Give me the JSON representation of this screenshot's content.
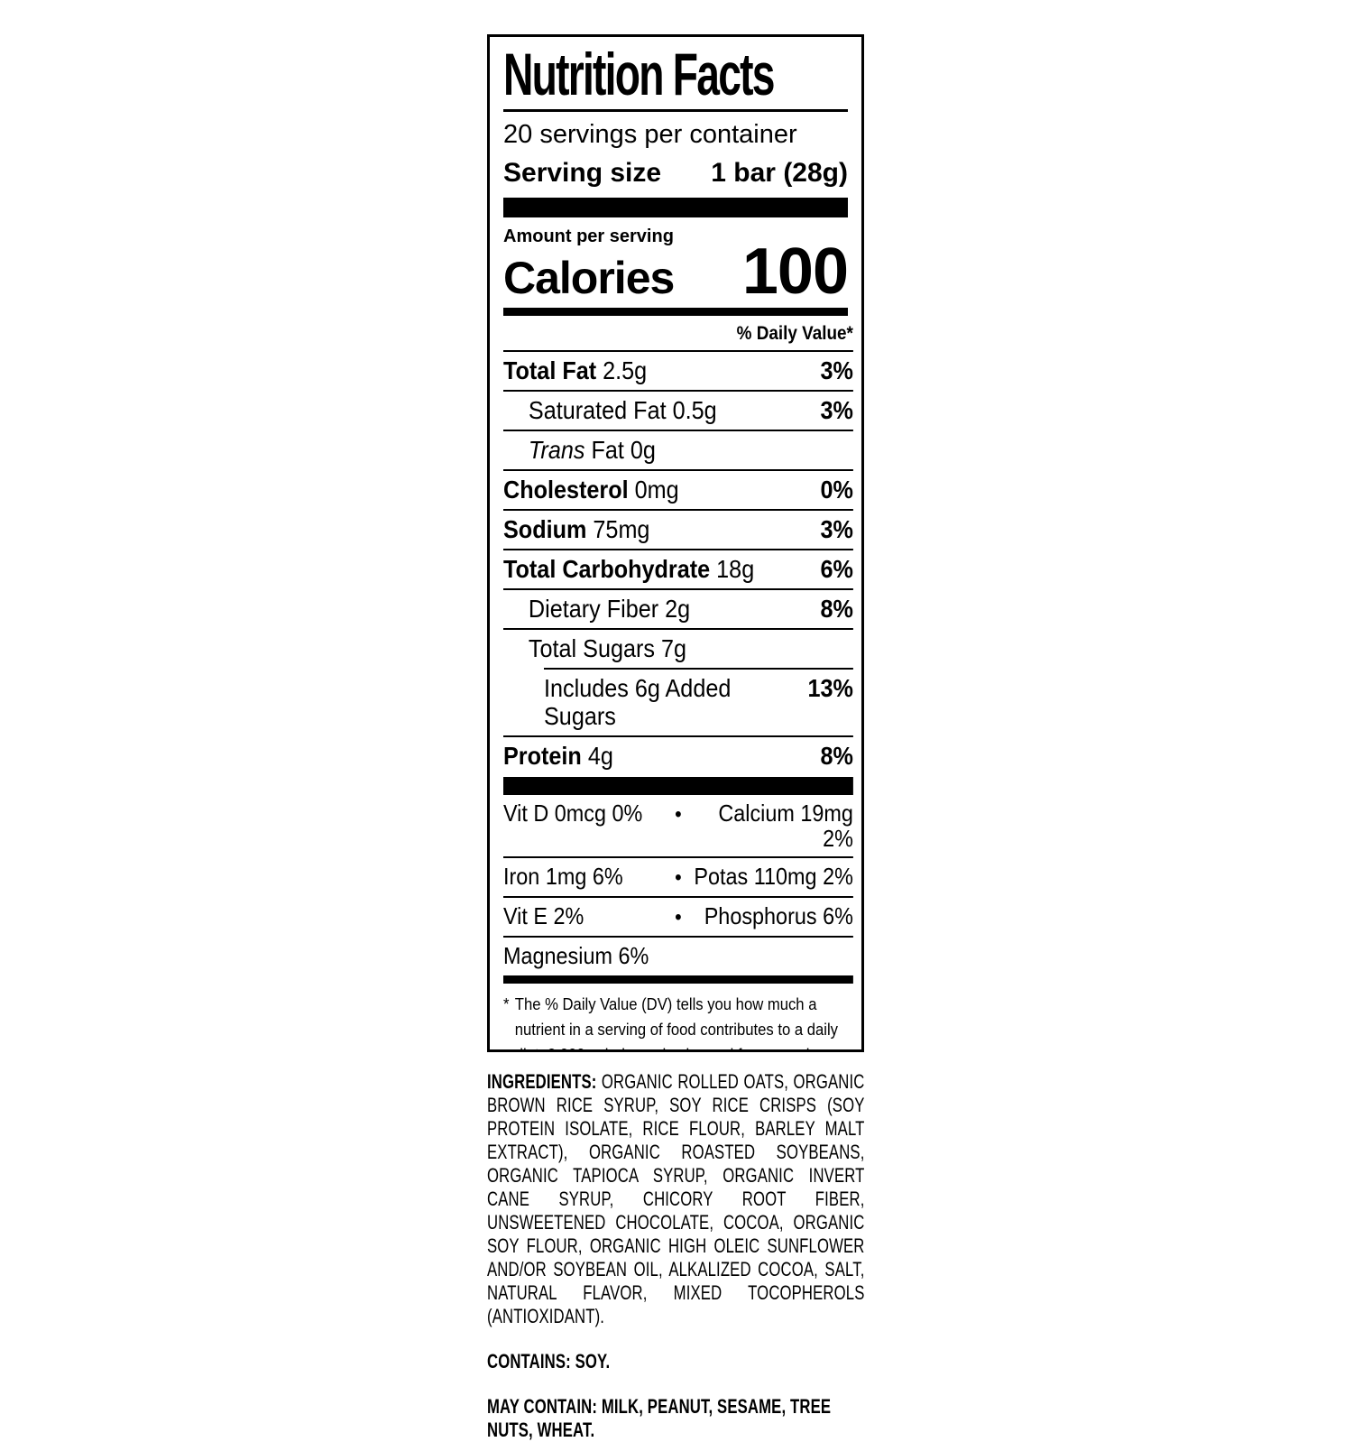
{
  "colors": {
    "ink": "#000000",
    "background": "#ffffff"
  },
  "icons": {
    "bullet": "•",
    "asterisk": "*"
  },
  "nf": {
    "title": "Nutrition Facts",
    "servings_per_container": "20 servings per container",
    "serving_size_label": "Serving size",
    "serving_size_value": "1 bar (28g)",
    "amount_per_serving": "Amount per serving",
    "calories_label": "Calories",
    "calories_value": "100",
    "daily_value_header": "% Daily Value*",
    "rows": [
      {
        "bold": "Total Fat",
        "rest": "2.5g",
        "dv": "3%"
      },
      {
        "rest": "Saturated Fat 0.5g",
        "dv": "3%"
      },
      {
        "italic": "Trans",
        "rest": "Fat 0g",
        "dv": ""
      },
      {
        "bold": "Cholesterol",
        "rest": "0mg",
        "dv": "0%"
      },
      {
        "bold": "Sodium",
        "rest": "75mg",
        "dv": "3%"
      },
      {
        "bold": "Total Carbohydrate",
        "rest": "18g",
        "dv": "6%"
      },
      {
        "rest": "Dietary Fiber 2g",
        "dv": "8%"
      },
      {
        "rest": "Total Sugars 7g",
        "dv": ""
      },
      {
        "rest": "Includes 6g Added Sugars",
        "dv": "13%"
      },
      {
        "bold": "Protein",
        "rest": "4g",
        "dv": "8%"
      }
    ],
    "vitamins": [
      {
        "left": "Vit D 0mcg 0%",
        "right": "Calcium 19mg 2%"
      },
      {
        "left": "Iron 1mg 6%",
        "right": "Potas 110mg 2%"
      },
      {
        "left": "Vit E 2%",
        "right": "Phosphorus 6%"
      },
      {
        "left": "Magnesium 6%",
        "right": ""
      }
    ],
    "footnote": "The % Daily Value (DV) tells you how much a nutrient in a serving of food contributes to a daily diet. 2,000 calories a day is used for general nutrition advice."
  },
  "ingredients": {
    "heading": "INGREDIENTS:",
    "body": "ORGANIC ROLLED OATS, ORGANIC BROWN RICE SYRUP, SOY RICE CRISPS (SOY PROTEIN ISOLATE, RICE FLOUR, BARLEY MALT EXTRACT), ORGANIC ROASTED SOYBEANS, ORGANIC TAPIOCA SYRUP, ORGANIC INVERT CANE SYRUP, CHICORY ROOT FIBER, UNSWEETENED CHOCOLATE, COCOA, ORGANIC SOY FLOUR, ORGANIC HIGH OLEIC SUNFLOWER AND/OR SOYBEAN OIL, ALKALIZED COCOA, SALT, NATURAL FLAVOR, MIXED TOCOPHEROLS (ANTIOXIDANT).",
    "contains": "CONTAINS: SOY.",
    "may_contain": "MAY CONTAIN: MILK, PEANUT, SESAME, TREE NUTS, WHEAT."
  }
}
